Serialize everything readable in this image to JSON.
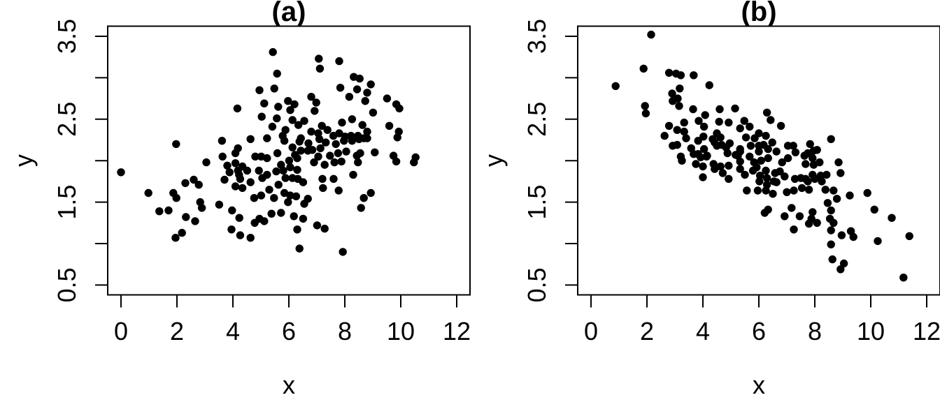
{
  "figure": {
    "background_color": "#ffffff",
    "point_color": "#000000",
    "axis_color": "#000000"
  },
  "chart_data": [
    {
      "type": "scatter",
      "panel": "a",
      "title": "(a)",
      "xlabel": "x",
      "ylabel": "y",
      "xlim": [
        0,
        12
      ],
      "ylim": [
        0.5,
        3.5
      ],
      "grid": false,
      "legend": null,
      "x_ticks": [
        0,
        2,
        4,
        6,
        8,
        10,
        12
      ],
      "x_tick_labels": [
        "0",
        "2",
        "4",
        "6",
        "8",
        "10",
        "12"
      ],
      "y_ticks": [
        0.5,
        1.0,
        1.5,
        2.0,
        2.5,
        3.0,
        3.5
      ],
      "y_labeled_ticks": [
        0.5,
        1.5,
        2.5,
        3.5
      ],
      "y_tick_labels": [
        "0.5",
        "1.5",
        "2.5",
        "3.5"
      ],
      "points": [
        [
          5.43,
          3.31
        ],
        [
          7.07,
          3.23
        ],
        [
          7.8,
          3.2
        ],
        [
          7.11,
          3.11
        ],
        [
          5.58,
          3.05
        ],
        [
          8.32,
          3.01
        ],
        [
          8.53,
          2.99
        ],
        [
          8.93,
          2.92
        ],
        [
          7.84,
          2.88
        ],
        [
          5.48,
          2.87
        ],
        [
          4.95,
          2.85
        ],
        [
          8.44,
          2.86
        ],
        [
          8.8,
          2.82
        ],
        [
          8.16,
          2.77
        ],
        [
          6.8,
          2.77
        ],
        [
          9.51,
          2.75
        ],
        [
          8.73,
          2.72
        ],
        [
          5.97,
          2.72
        ],
        [
          6.98,
          2.7
        ],
        [
          5.12,
          2.69
        ],
        [
          9.84,
          2.68
        ],
        [
          6.2,
          2.68
        ],
        [
          5.62,
          2.65
        ],
        [
          9.95,
          2.63
        ],
        [
          4.16,
          2.63
        ],
        [
          6.92,
          2.6
        ],
        [
          6.05,
          2.61
        ],
        [
          9.01,
          2.58
        ],
        [
          5.03,
          2.53
        ],
        [
          5.57,
          2.51
        ],
        [
          8.26,
          2.5
        ],
        [
          6.13,
          2.49
        ],
        [
          6.55,
          2.48
        ],
        [
          7.9,
          2.46
        ],
        [
          6.34,
          2.43
        ],
        [
          8.63,
          2.43
        ],
        [
          9.59,
          2.42
        ],
        [
          5.41,
          2.41
        ],
        [
          7.18,
          2.42
        ],
        [
          5.88,
          2.37
        ],
        [
          7.38,
          2.37
        ],
        [
          6.8,
          2.35
        ],
        [
          8.8,
          2.35
        ],
        [
          9.93,
          2.35
        ],
        [
          7.05,
          2.33
        ],
        [
          7.8,
          2.33
        ],
        [
          5.78,
          2.3
        ],
        [
          7.59,
          2.3
        ],
        [
          8.01,
          2.29
        ],
        [
          8.22,
          2.3
        ],
        [
          8.47,
          2.3
        ],
        [
          9.88,
          2.28
        ],
        [
          6.43,
          2.27
        ],
        [
          8.68,
          2.27
        ],
        [
          8.8,
          2.27
        ],
        [
          5.22,
          2.27
        ],
        [
          7.09,
          2.26
        ],
        [
          4.63,
          2.26
        ],
        [
          8.51,
          2.26
        ],
        [
          5.84,
          2.24
        ],
        [
          8.26,
          2.24
        ],
        [
          3.61,
          2.24
        ],
        [
          6.38,
          2.23
        ],
        [
          7.32,
          2.22
        ],
        [
          6.7,
          2.21
        ],
        [
          1.97,
          2.2
        ],
        [
          7.68,
          2.2
        ],
        [
          7.97,
          2.24
        ],
        [
          6.13,
          2.16
        ],
        [
          4.18,
          2.15
        ],
        [
          7.13,
          2.15
        ],
        [
          6.84,
          2.13
        ],
        [
          6.68,
          2.12
        ],
        [
          6.43,
          2.12
        ],
        [
          8.05,
          2.11
        ],
        [
          9.07,
          2.1
        ],
        [
          4.09,
          2.09
        ],
        [
          7.76,
          2.09
        ],
        [
          8.55,
          2.09
        ],
        [
          5.59,
          2.09
        ],
        [
          6.22,
          2.07
        ],
        [
          7.47,
          2.06
        ],
        [
          9.74,
          2.06
        ],
        [
          8.43,
          2.06
        ],
        [
          4.8,
          2.05
        ],
        [
          7.05,
          2.05
        ],
        [
          5.01,
          2.05
        ],
        [
          3.63,
          2.05
        ],
        [
          10.53,
          2.04
        ],
        [
          5.22,
          2.03
        ],
        [
          6.3,
          2.03
        ],
        [
          6.01,
          2.0
        ],
        [
          7.88,
          1.99
        ],
        [
          7.63,
          1.98
        ],
        [
          6.9,
          1.98
        ],
        [
          8.47,
          1.98
        ],
        [
          9.84,
          1.99
        ],
        [
          10.47,
          1.98
        ],
        [
          3.05,
          1.98
        ],
        [
          4.09,
          1.97
        ],
        [
          7.28,
          1.95
        ],
        [
          5.72,
          1.95
        ],
        [
          3.8,
          1.94
        ],
        [
          4.34,
          1.93
        ],
        [
          6.05,
          1.92
        ],
        [
          4.93,
          1.88
        ],
        [
          4.51,
          1.88
        ],
        [
          4.18,
          1.88
        ],
        [
          5.8,
          1.88
        ],
        [
          6.3,
          1.89
        ],
        [
          5.55,
          1.87
        ],
        [
          0.0,
          1.86
        ],
        [
          3.88,
          1.86
        ],
        [
          2.6,
          1.77
        ],
        [
          2.3,
          1.73
        ],
        [
          2.78,
          1.71
        ],
        [
          3.7,
          1.77
        ],
        [
          4.26,
          1.78
        ],
        [
          5.22,
          1.83
        ],
        [
          4.22,
          1.83
        ],
        [
          8.3,
          1.83
        ],
        [
          6.13,
          1.79
        ],
        [
          6.32,
          1.78
        ],
        [
          7.2,
          1.78
        ],
        [
          7.6,
          1.78
        ],
        [
          5.88,
          1.79
        ],
        [
          5.05,
          1.79
        ],
        [
          6.51,
          1.74
        ],
        [
          4.63,
          1.74
        ],
        [
          5.63,
          1.71
        ],
        [
          7.22,
          1.67
        ],
        [
          4.34,
          1.67
        ],
        [
          4.09,
          1.69
        ],
        [
          7.78,
          1.64
        ],
        [
          5.3,
          1.65
        ],
        [
          8.93,
          1.61
        ],
        [
          5.84,
          1.61
        ],
        [
          0.98,
          1.61
        ],
        [
          1.87,
          1.61
        ],
        [
          1.98,
          1.55
        ],
        [
          5.01,
          1.58
        ],
        [
          6.05,
          1.58
        ],
        [
          6.26,
          1.57
        ],
        [
          4.76,
          1.55
        ],
        [
          5.47,
          1.55
        ],
        [
          8.68,
          1.55
        ],
        [
          6.68,
          1.54
        ],
        [
          2.83,
          1.5
        ],
        [
          5.97,
          1.5
        ],
        [
          6.55,
          1.48
        ],
        [
          3.51,
          1.47
        ],
        [
          2.89,
          1.43
        ],
        [
          8.58,
          1.43
        ],
        [
          1.7,
          1.4
        ],
        [
          3.97,
          1.4
        ],
        [
          1.37,
          1.39
        ],
        [
          5.72,
          1.37
        ],
        [
          5.38,
          1.36
        ],
        [
          6.18,
          1.33
        ],
        [
          2.32,
          1.32
        ],
        [
          4.23,
          1.31
        ],
        [
          6.51,
          1.3
        ],
        [
          4.95,
          1.3
        ],
        [
          2.65,
          1.27
        ],
        [
          5.12,
          1.27
        ],
        [
          4.78,
          1.25
        ],
        [
          7.01,
          1.22
        ],
        [
          7.28,
          1.18
        ],
        [
          6.3,
          1.17
        ],
        [
          3.95,
          1.17
        ],
        [
          2.18,
          1.13
        ],
        [
          4.26,
          1.1
        ],
        [
          1.95,
          1.07
        ],
        [
          4.63,
          1.07
        ],
        [
          6.38,
          0.94
        ],
        [
          7.93,
          0.9
        ]
      ]
    },
    {
      "type": "scatter",
      "panel": "b",
      "title": "(b)",
      "xlabel": "x",
      "ylabel": "y",
      "xlim": [
        0,
        12
      ],
      "ylim": [
        0.5,
        3.5
      ],
      "grid": false,
      "legend": null,
      "x_ticks": [
        0,
        2,
        4,
        6,
        8,
        10,
        12
      ],
      "x_tick_labels": [
        "0",
        "2",
        "4",
        "6",
        "8",
        "10",
        "12"
      ],
      "y_ticks": [
        0.5,
        1.0,
        1.5,
        2.0,
        2.5,
        3.0,
        3.5
      ],
      "y_labeled_ticks": [
        0.5,
        1.5,
        2.5,
        3.5
      ],
      "y_tick_labels": [
        "0.5",
        "1.5",
        "2.5",
        "3.5"
      ],
      "points": [
        [
          2.15,
          3.52
        ],
        [
          1.88,
          3.11
        ],
        [
          2.79,
          3.06
        ],
        [
          3.04,
          3.05
        ],
        [
          3.21,
          3.03
        ],
        [
          3.67,
          3.03
        ],
        [
          4.23,
          2.91
        ],
        [
          0.88,
          2.9
        ],
        [
          3.17,
          2.87
        ],
        [
          2.9,
          2.81
        ],
        [
          3.1,
          2.75
        ],
        [
          2.92,
          2.72
        ],
        [
          3.15,
          2.66
        ],
        [
          1.93,
          2.66
        ],
        [
          5.15,
          2.63
        ],
        [
          3.65,
          2.62
        ],
        [
          4.6,
          2.62
        ],
        [
          6.29,
          2.58
        ],
        [
          1.96,
          2.57
        ],
        [
          4.08,
          2.55
        ],
        [
          6.42,
          2.49
        ],
        [
          3.85,
          2.48
        ],
        [
          5.48,
          2.48
        ],
        [
          4.58,
          2.47
        ],
        [
          4.92,
          2.46
        ],
        [
          3.33,
          2.46
        ],
        [
          6.79,
          2.42
        ],
        [
          5.67,
          2.41
        ],
        [
          4.04,
          2.41
        ],
        [
          2.79,
          2.42
        ],
        [
          3.08,
          2.37
        ],
        [
          3.33,
          2.35
        ],
        [
          4.5,
          2.33
        ],
        [
          5.33,
          2.39
        ],
        [
          6.0,
          2.33
        ],
        [
          2.63,
          2.3
        ],
        [
          3.4,
          2.27
        ],
        [
          4.02,
          2.29
        ],
        [
          4.35,
          2.26
        ],
        [
          4.63,
          2.28
        ],
        [
          5.54,
          2.28
        ],
        [
          5.85,
          2.27
        ],
        [
          6.25,
          2.3
        ],
        [
          6.48,
          2.22
        ],
        [
          7.23,
          2.18
        ],
        [
          7.83,
          2.2
        ],
        [
          8.58,
          2.26
        ],
        [
          3.08,
          2.19
        ],
        [
          3.83,
          2.24
        ],
        [
          2.92,
          2.18
        ],
        [
          3.58,
          2.15
        ],
        [
          3.83,
          2.08
        ],
        [
          4.04,
          2.14
        ],
        [
          4.5,
          2.18
        ],
        [
          4.83,
          2.16
        ],
        [
          5.33,
          2.14
        ],
        [
          5.71,
          2.18
        ],
        [
          6.0,
          2.18
        ],
        [
          6.33,
          2.14
        ],
        [
          6.63,
          2.11
        ],
        [
          7.04,
          2.18
        ],
        [
          7.31,
          2.1
        ],
        [
          8.08,
          2.13
        ],
        [
          6.17,
          2.19
        ],
        [
          6.0,
          2.11
        ],
        [
          7.96,
          2.12
        ],
        [
          7.75,
          2.09
        ],
        [
          4.67,
          2.19
        ],
        [
          4.96,
          2.21
        ],
        [
          4.88,
          2.09
        ],
        [
          5.17,
          2.07
        ],
        [
          5.33,
          2.11
        ],
        [
          4.15,
          2.06
        ],
        [
          4.42,
          2.22
        ],
        [
          3.21,
          2.05
        ],
        [
          3.67,
          2.08
        ],
        [
          3.92,
          2.04
        ],
        [
          4.13,
          2.05
        ],
        [
          5.25,
          2.06
        ],
        [
          5.33,
          1.99
        ],
        [
          5.67,
          2.05
        ],
        [
          5.83,
          1.98
        ],
        [
          6.08,
          2.0
        ],
        [
          6.33,
          2.03
        ],
        [
          6.83,
          1.98
        ],
        [
          7.04,
          2.03
        ],
        [
          7.63,
          2.06
        ],
        [
          7.92,
          2.03
        ],
        [
          8.17,
          1.98
        ],
        [
          8.85,
          1.98
        ],
        [
          4.38,
          1.96
        ],
        [
          4.63,
          1.93
        ],
        [
          4.92,
          1.94
        ],
        [
          3.25,
          2.0
        ],
        [
          3.75,
          1.96
        ],
        [
          4.0,
          1.93
        ],
        [
          7.67,
          1.96
        ],
        [
          7.96,
          1.95
        ],
        [
          5.92,
          1.92
        ],
        [
          5.33,
          1.9
        ],
        [
          4.42,
          1.9
        ],
        [
          5.79,
          1.88
        ],
        [
          6.75,
          1.87
        ],
        [
          4.71,
          1.85
        ],
        [
          8.92,
          1.85
        ],
        [
          5.5,
          1.83
        ],
        [
          6.04,
          1.82
        ],
        [
          4.0,
          1.8
        ],
        [
          4.92,
          1.78
        ],
        [
          6.29,
          1.79
        ],
        [
          7.5,
          1.79
        ],
        [
          7.29,
          1.78
        ],
        [
          8.0,
          1.78
        ],
        [
          6.54,
          1.75
        ],
        [
          7.75,
          1.75
        ],
        [
          8.25,
          1.75
        ],
        [
          6.92,
          1.81
        ],
        [
          6.25,
          1.88
        ],
        [
          6.58,
          1.85
        ],
        [
          7.67,
          1.78
        ],
        [
          7.92,
          1.83
        ],
        [
          8.21,
          1.82
        ],
        [
          8.42,
          1.83
        ],
        [
          6.02,
          1.75
        ],
        [
          6.29,
          1.71
        ],
        [
          6.63,
          1.74
        ],
        [
          5.57,
          1.64
        ],
        [
          5.96,
          1.64
        ],
        [
          7.0,
          1.62
        ],
        [
          7.25,
          1.64
        ],
        [
          7.54,
          1.67
        ],
        [
          7.79,
          1.65
        ],
        [
          6.25,
          1.64
        ],
        [
          6.5,
          1.6
        ],
        [
          8.38,
          1.65
        ],
        [
          8.67,
          1.64
        ],
        [
          9.25,
          1.58
        ],
        [
          9.88,
          1.61
        ],
        [
          8.79,
          1.54
        ],
        [
          8.46,
          1.49
        ],
        [
          6.33,
          1.41
        ],
        [
          6.21,
          1.37
        ],
        [
          7.17,
          1.43
        ],
        [
          6.92,
          1.33
        ],
        [
          7.46,
          1.33
        ],
        [
          7.92,
          1.38
        ],
        [
          7.88,
          1.3
        ],
        [
          10.13,
          1.41
        ],
        [
          10.75,
          1.31
        ],
        [
          8.58,
          1.4
        ],
        [
          8.54,
          1.3
        ],
        [
          8.67,
          1.25
        ],
        [
          8.08,
          1.25
        ],
        [
          7.79,
          1.24
        ],
        [
          7.25,
          1.17
        ],
        [
          8.58,
          1.16
        ],
        [
          8.96,
          1.1
        ],
        [
          9.29,
          1.15
        ],
        [
          9.38,
          1.08
        ],
        [
          11.38,
          1.09
        ],
        [
          10.25,
          1.03
        ],
        [
          8.58,
          0.99
        ],
        [
          8.63,
          0.81
        ],
        [
          9.04,
          0.76
        ],
        [
          8.92,
          0.69
        ],
        [
          11.17,
          0.59
        ]
      ]
    }
  ]
}
